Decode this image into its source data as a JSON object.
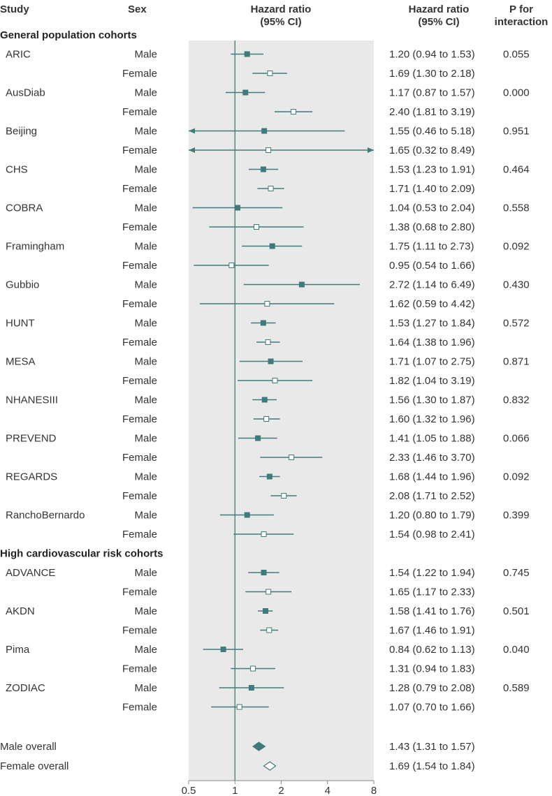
{
  "headers": {
    "study": "Study",
    "sex": "Sex",
    "hr_plot_1": "Hazard ratio",
    "hr_plot_2": "(95% CI)",
    "hr_text_1": "Hazard ratio",
    "hr_text_2": "(95% CI)",
    "p_1": "P for",
    "p_2": "interaction"
  },
  "colors": {
    "accent": "#3f7b7b",
    "panel": "#e9e9e9",
    "text": "#333333"
  },
  "chart_data": {
    "type": "forest",
    "title": "",
    "xscale": "log2",
    "xlim": [
      0.5,
      8
    ],
    "xticks": [
      0.5,
      1,
      2,
      4,
      8
    ],
    "xtick_labels": [
      "0.5",
      "1",
      "2",
      "4",
      "8"
    ],
    "reference_line": 1,
    "marker_legend": {
      "Male": "filled square",
      "Female": "open square"
    },
    "sections": [
      {
        "title": "General population cohorts",
        "studies": [
          {
            "study": "ARIC",
            "p": "0.055",
            "rows": [
              {
                "sex": "Male",
                "hr": 1.2,
                "lo": 0.94,
                "hi": 1.53,
                "label": "1.20 (0.94 to 1.53)"
              },
              {
                "sex": "Female",
                "hr": 1.69,
                "lo": 1.3,
                "hi": 2.18,
                "label": "1.69 (1.30 to 2.18)"
              }
            ]
          },
          {
            "study": "AusDiab",
            "p": "0.000",
            "rows": [
              {
                "sex": "Male",
                "hr": 1.17,
                "lo": 0.87,
                "hi": 1.57,
                "label": "1.17 (0.87 to 1.57)"
              },
              {
                "sex": "Female",
                "hr": 2.4,
                "lo": 1.81,
                "hi": 3.19,
                "label": "2.40 (1.81 to 3.19)"
              }
            ]
          },
          {
            "study": "Beijing",
            "p": "0.951",
            "rows": [
              {
                "sex": "Male",
                "hr": 1.55,
                "lo": 0.46,
                "hi": 5.18,
                "label": "1.55 (0.46 to 5.18)"
              },
              {
                "sex": "Female",
                "hr": 1.65,
                "lo": 0.32,
                "hi": 8.49,
                "label": "1.65 (0.32 to 8.49)"
              }
            ]
          },
          {
            "study": "CHS",
            "p": "0.464",
            "rows": [
              {
                "sex": "Male",
                "hr": 1.53,
                "lo": 1.23,
                "hi": 1.91,
                "label": "1.53 (1.23 to 1.91)"
              },
              {
                "sex": "Female",
                "hr": 1.71,
                "lo": 1.4,
                "hi": 2.09,
                "label": "1.71 (1.40 to 2.09)"
              }
            ]
          },
          {
            "study": "COBRA",
            "p": "0.558",
            "rows": [
              {
                "sex": "Male",
                "hr": 1.04,
                "lo": 0.53,
                "hi": 2.04,
                "label": "1.04 (0.53 to 2.04)"
              },
              {
                "sex": "Female",
                "hr": 1.38,
                "lo": 0.68,
                "hi": 2.8,
                "label": "1.38 (0.68 to 2.80)"
              }
            ]
          },
          {
            "study": "Framingham",
            "p": "0.092",
            "rows": [
              {
                "sex": "Male",
                "hr": 1.75,
                "lo": 1.11,
                "hi": 2.73,
                "label": "1.75 (1.11 to 2.73)"
              },
              {
                "sex": "Female",
                "hr": 0.95,
                "lo": 0.54,
                "hi": 1.66,
                "label": "0.95 (0.54 to 1.66)"
              }
            ]
          },
          {
            "study": "Gubbio",
            "p": "0.430",
            "rows": [
              {
                "sex": "Male",
                "hr": 2.72,
                "lo": 1.14,
                "hi": 6.49,
                "label": "2.72 (1.14 to 6.49)"
              },
              {
                "sex": "Female",
                "hr": 1.62,
                "lo": 0.59,
                "hi": 4.42,
                "label": "1.62 (0.59 to 4.42)"
              }
            ]
          },
          {
            "study": "HUNT",
            "p": "0.572",
            "rows": [
              {
                "sex": "Male",
                "hr": 1.53,
                "lo": 1.27,
                "hi": 1.84,
                "label": "1.53 (1.27 to 1.84)"
              },
              {
                "sex": "Female",
                "hr": 1.64,
                "lo": 1.38,
                "hi": 1.96,
                "label": "1.64 (1.38 to 1.96)"
              }
            ]
          },
          {
            "study": "MESA",
            "p": "0.871",
            "rows": [
              {
                "sex": "Male",
                "hr": 1.71,
                "lo": 1.07,
                "hi": 2.75,
                "label": "1.71 (1.07 to 2.75)"
              },
              {
                "sex": "Female",
                "hr": 1.82,
                "lo": 1.04,
                "hi": 3.19,
                "label": "1.82 (1.04 to 3.19)"
              }
            ]
          },
          {
            "study": "NHANESIII",
            "p": "0.832",
            "rows": [
              {
                "sex": "Male",
                "hr": 1.56,
                "lo": 1.3,
                "hi": 1.87,
                "label": "1.56 (1.30 to 1.87)"
              },
              {
                "sex": "Female",
                "hr": 1.6,
                "lo": 1.32,
                "hi": 1.96,
                "label": "1.60 (1.32 to 1.96)"
              }
            ]
          },
          {
            "study": "PREVEND",
            "p": "0.066",
            "rows": [
              {
                "sex": "Male",
                "hr": 1.41,
                "lo": 1.05,
                "hi": 1.88,
                "label": "1.41 (1.05 to 1.88)"
              },
              {
                "sex": "Female",
                "hr": 2.33,
                "lo": 1.46,
                "hi": 3.7,
                "label": "2.33 (1.46 to 3.70)"
              }
            ]
          },
          {
            "study": "REGARDS",
            "p": "0.092",
            "rows": [
              {
                "sex": "Male",
                "hr": 1.68,
                "lo": 1.44,
                "hi": 1.96,
                "label": "1.68 (1.44 to 1.96)"
              },
              {
                "sex": "Female",
                "hr": 2.08,
                "lo": 1.71,
                "hi": 2.52,
                "label": "2.08 (1.71 to 2.52)"
              }
            ]
          },
          {
            "study": "RanchoBernardo",
            "p": "0.399",
            "rows": [
              {
                "sex": "Male",
                "hr": 1.2,
                "lo": 0.8,
                "hi": 1.79,
                "label": "1.20 (0.80 to 1.79)"
              },
              {
                "sex": "Female",
                "hr": 1.54,
                "lo": 0.98,
                "hi": 2.41,
                "label": "1.54 (0.98 to 2.41)"
              }
            ]
          }
        ]
      },
      {
        "title": "High cardiovascular risk cohorts",
        "studies": [
          {
            "study": "ADVANCE",
            "p": "0.745",
            "rows": [
              {
                "sex": "Male",
                "hr": 1.54,
                "lo": 1.22,
                "hi": 1.94,
                "label": "1.54 (1.22 to 1.94)"
              },
              {
                "sex": "Female",
                "hr": 1.65,
                "lo": 1.17,
                "hi": 2.33,
                "label": "1.65 (1.17 to 2.33)"
              }
            ]
          },
          {
            "study": "AKDN",
            "p": "0.501",
            "rows": [
              {
                "sex": "Male",
                "hr": 1.58,
                "lo": 1.41,
                "hi": 1.76,
                "label": "1.58 (1.41 to 1.76)"
              },
              {
                "sex": "Female",
                "hr": 1.67,
                "lo": 1.46,
                "hi": 1.91,
                "label": "1.67 (1.46 to 1.91)"
              }
            ]
          },
          {
            "study": "Pima",
            "p": "0.040",
            "rows": [
              {
                "sex": "Male",
                "hr": 0.84,
                "lo": 0.62,
                "hi": 1.13,
                "label": "0.84 (0.62 to 1.13)"
              },
              {
                "sex": "Female",
                "hr": 1.31,
                "lo": 0.94,
                "hi": 1.83,
                "label": "1.31 (0.94 to 1.83)"
              }
            ]
          },
          {
            "study": "ZODIAC",
            "p": "0.589",
            "rows": [
              {
                "sex": "Male",
                "hr": 1.28,
                "lo": 0.79,
                "hi": 2.08,
                "label": "1.28 (0.79 to 2.08)"
              },
              {
                "sex": "Female",
                "hr": 1.07,
                "lo": 0.7,
                "hi": 1.66,
                "label": "1.07 (0.70 to 1.66)"
              }
            ]
          }
        ]
      }
    ],
    "overall": [
      {
        "name": "Male overall",
        "sex": "Male",
        "hr": 1.43,
        "lo": 1.31,
        "hi": 1.57,
        "label": "1.43 (1.31 to 1.57)"
      },
      {
        "name": "Female overall",
        "sex": "Female",
        "hr": 1.69,
        "lo": 1.54,
        "hi": 1.84,
        "label": "1.69 (1.54 to 1.84)"
      }
    ]
  }
}
